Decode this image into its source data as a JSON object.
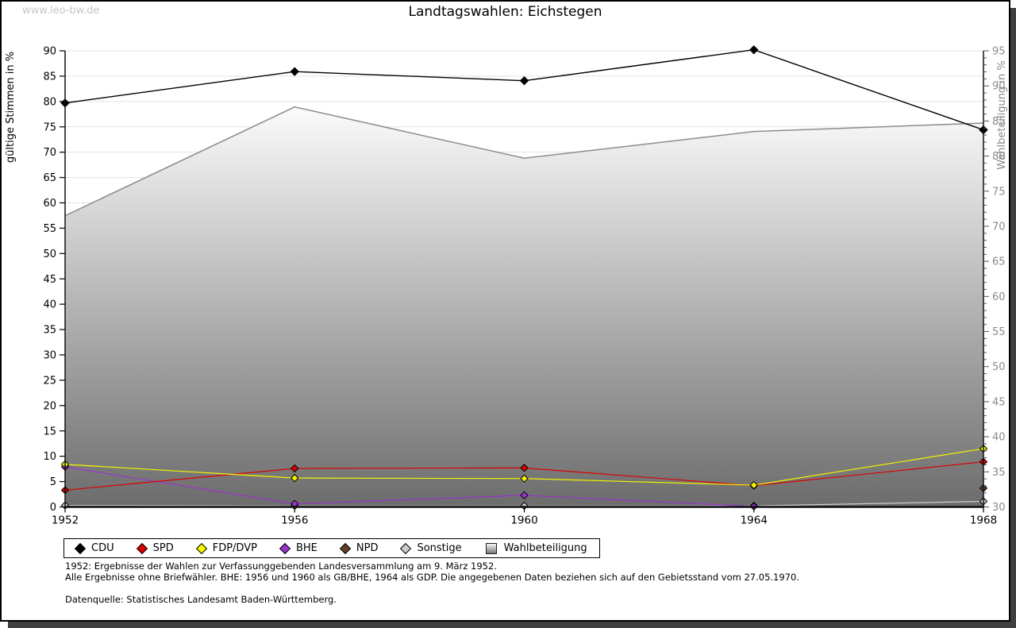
{
  "watermark": "www.leo-bw.de",
  "title": "Landtagswahlen: Eichstegen",
  "chart_data": {
    "type": "line",
    "x": [
      1952,
      1956,
      1960,
      1964,
      1968
    ],
    "left_axis": {
      "label": "gültige Stimmen in %",
      "min": 0,
      "max": 90,
      "tick_step": 5
    },
    "right_axis": {
      "label": "Wahlbeteiligung in %",
      "min": 30,
      "max": 95,
      "tick_step": 5,
      "minor_tick_step": 1
    },
    "grid": true,
    "legend_position": "bottom",
    "series": [
      {
        "name": "CDU",
        "axis": "left",
        "type": "line",
        "color": "#000000",
        "values": [
          79.7,
          85.9,
          84.1,
          90.2,
          74.4
        ]
      },
      {
        "name": "SPD",
        "axis": "left",
        "type": "line",
        "color": "#dd0000",
        "values": [
          3.3,
          7.6,
          7.7,
          4.2,
          8.9
        ]
      },
      {
        "name": "FDP/DVP",
        "axis": "left",
        "type": "line",
        "color": "#f5f500",
        "values": [
          8.4,
          5.7,
          5.6,
          4.3,
          11.5
        ]
      },
      {
        "name": "BHE",
        "axis": "left",
        "type": "line",
        "color": "#9933cc",
        "values": [
          7.9,
          0.6,
          2.3,
          0.1,
          null
        ]
      },
      {
        "name": "NPD",
        "axis": "left",
        "type": "line",
        "color": "#63402a",
        "values": [
          null,
          null,
          null,
          null,
          3.7
        ]
      },
      {
        "name": "Sonstige",
        "axis": "left",
        "type": "line",
        "color": "#cccccc",
        "values": [
          0.3,
          0.2,
          0.2,
          0.2,
          1.1
        ]
      },
      {
        "name": "Wahlbeteiligung",
        "axis": "right",
        "type": "area",
        "color": "#8c8c8c",
        "fill_top": "#fbfbfb",
        "fill_bottom": "#6c6c6c",
        "values": [
          71.5,
          87.0,
          79.7,
          83.5,
          84.7
        ]
      }
    ],
    "colors": {
      "grid": "#e3e3e3",
      "axis": "#111111",
      "right_axis_text": "#8a8a8a"
    }
  },
  "footnotes": {
    "line1": "1952: Ergebnisse der Wahlen zur Verfassunggebenden Landesversammlung am 9. März 1952.",
    "line2": "Alle Ergebnisse ohne Briefwähler. BHE: 1956 und 1960 als GB/BHE, 1964 als GDP. Die angegebenen Daten beziehen sich auf den Gebietsstand vom 27.05.1970.",
    "source": "Datenquelle: Statistisches Landesamt Baden-Württemberg."
  }
}
